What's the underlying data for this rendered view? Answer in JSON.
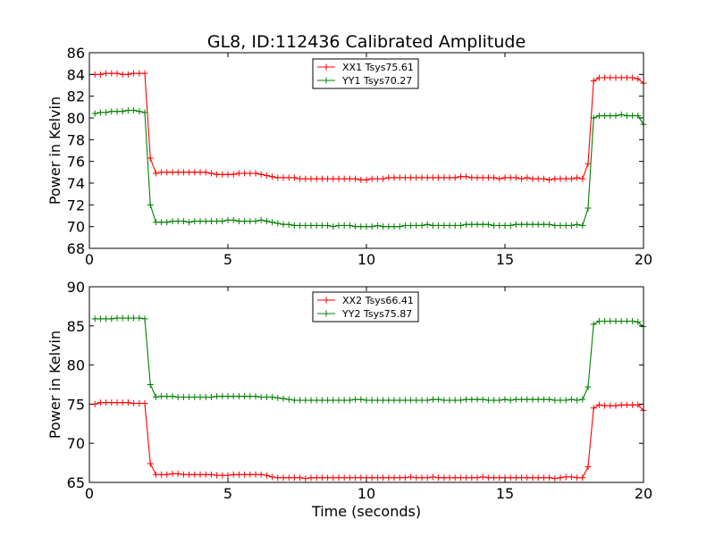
{
  "title": "GL8, ID:112436 Calibrated Amplitude",
  "colors": {
    "red": "#ff0000",
    "green": "#008000"
  },
  "chart_data": [
    {
      "type": "line",
      "title": "GL8, ID:112436 Calibrated Amplitude",
      "xlabel": "",
      "ylabel": "Power in Kelvin",
      "xlim": [
        0,
        20
      ],
      "ylim": [
        68,
        86
      ],
      "xticks": [
        "0",
        "5",
        "10",
        "15",
        "20"
      ],
      "yticks": [
        "68",
        "70",
        "72",
        "74",
        "76",
        "78",
        "80",
        "82",
        "84",
        "86"
      ],
      "grid": false,
      "legend_position": "top-center",
      "marker": "plus",
      "x": [
        0.2,
        0.4,
        0.6,
        0.8,
        1.0,
        1.2,
        1.4,
        1.6,
        1.8,
        2.0,
        2.2,
        2.4,
        2.6,
        2.8,
        3.0,
        3.2,
        3.4,
        3.6,
        3.8,
        4.0,
        4.2,
        4.4,
        4.6,
        4.8,
        5.0,
        5.2,
        5.4,
        5.6,
        5.8,
        6.0,
        6.2,
        6.4,
        6.6,
        6.8,
        7.0,
        7.2,
        7.4,
        7.6,
        7.8,
        8.0,
        8.2,
        8.4,
        8.6,
        8.8,
        9.0,
        9.2,
        9.4,
        9.6,
        9.8,
        10.0,
        10.2,
        10.4,
        10.6,
        10.8,
        11.0,
        11.2,
        11.4,
        11.6,
        11.8,
        12.0,
        12.2,
        12.4,
        12.6,
        12.8,
        13.0,
        13.2,
        13.4,
        13.6,
        13.8,
        14.0,
        14.2,
        14.4,
        14.6,
        14.8,
        15.0,
        15.2,
        15.4,
        15.6,
        15.8,
        16.0,
        16.2,
        16.4,
        16.6,
        16.8,
        17.0,
        17.2,
        17.4,
        17.6,
        17.8,
        18.0,
        18.2,
        18.4,
        18.6,
        18.8,
        19.0,
        19.2,
        19.4,
        19.6,
        19.8,
        20.0
      ],
      "series": [
        {
          "name": "XX1 Tsys75.61",
          "color": "#ff0000",
          "values": [
            84.0,
            84.0,
            84.1,
            84.1,
            84.1,
            84.0,
            84.0,
            84.1,
            84.1,
            84.1,
            76.3,
            74.9,
            75.0,
            75.0,
            75.0,
            75.0,
            75.0,
            75.0,
            75.0,
            75.0,
            75.0,
            74.9,
            74.8,
            74.8,
            74.8,
            74.8,
            74.9,
            74.9,
            74.9,
            74.9,
            74.8,
            74.7,
            74.6,
            74.5,
            74.5,
            74.5,
            74.5,
            74.4,
            74.4,
            74.4,
            74.4,
            74.4,
            74.4,
            74.4,
            74.4,
            74.4,
            74.4,
            74.4,
            74.3,
            74.3,
            74.4,
            74.4,
            74.4,
            74.5,
            74.5,
            74.5,
            74.5,
            74.5,
            74.5,
            74.5,
            74.5,
            74.5,
            74.5,
            74.5,
            74.5,
            74.5,
            74.6,
            74.6,
            74.5,
            74.5,
            74.5,
            74.5,
            74.5,
            74.4,
            74.5,
            74.5,
            74.5,
            74.4,
            74.5,
            74.4,
            74.4,
            74.4,
            74.3,
            74.4,
            74.4,
            74.4,
            74.4,
            74.5,
            74.4,
            75.8,
            83.4,
            83.7,
            83.7,
            83.7,
            83.7,
            83.7,
            83.7,
            83.7,
            83.6,
            83.2
          ]
        },
        {
          "name": "YY1 Tsys70.27",
          "color": "#008000",
          "values": [
            80.4,
            80.5,
            80.5,
            80.6,
            80.6,
            80.6,
            80.7,
            80.7,
            80.6,
            80.5,
            72.0,
            70.4,
            70.4,
            70.4,
            70.5,
            70.5,
            70.5,
            70.4,
            70.5,
            70.5,
            70.5,
            70.5,
            70.5,
            70.5,
            70.6,
            70.6,
            70.5,
            70.5,
            70.5,
            70.5,
            70.6,
            70.5,
            70.4,
            70.3,
            70.2,
            70.2,
            70.1,
            70.1,
            70.1,
            70.1,
            70.1,
            70.1,
            70.1,
            70.0,
            70.1,
            70.1,
            70.1,
            70.0,
            70.0,
            70.0,
            70.0,
            70.1,
            70.0,
            70.0,
            70.0,
            70.0,
            70.1,
            70.1,
            70.1,
            70.1,
            70.2,
            70.1,
            70.1,
            70.1,
            70.1,
            70.1,
            70.1,
            70.2,
            70.2,
            70.2,
            70.2,
            70.2,
            70.1,
            70.1,
            70.1,
            70.1,
            70.2,
            70.2,
            70.2,
            70.2,
            70.2,
            70.2,
            70.2,
            70.1,
            70.1,
            70.1,
            70.1,
            70.2,
            70.1,
            71.7,
            80.0,
            80.2,
            80.2,
            80.2,
            80.2,
            80.3,
            80.2,
            80.2,
            80.2,
            79.4
          ]
        }
      ]
    },
    {
      "type": "line",
      "title": "",
      "xlabel": "Time (seconds)",
      "ylabel": "Power in Kelvin",
      "xlim": [
        0,
        20
      ],
      "ylim": [
        65,
        90
      ],
      "xticks": [
        "0",
        "5",
        "10",
        "15",
        "20"
      ],
      "yticks": [
        "65",
        "70",
        "75",
        "80",
        "85",
        "90"
      ],
      "grid": false,
      "legend_position": "top-center",
      "marker": "plus",
      "x": [
        0.2,
        0.4,
        0.6,
        0.8,
        1.0,
        1.2,
        1.4,
        1.6,
        1.8,
        2.0,
        2.2,
        2.4,
        2.6,
        2.8,
        3.0,
        3.2,
        3.4,
        3.6,
        3.8,
        4.0,
        4.2,
        4.4,
        4.6,
        4.8,
        5.0,
        5.2,
        5.4,
        5.6,
        5.8,
        6.0,
        6.2,
        6.4,
        6.6,
        6.8,
        7.0,
        7.2,
        7.4,
        7.6,
        7.8,
        8.0,
        8.2,
        8.4,
        8.6,
        8.8,
        9.0,
        9.2,
        9.4,
        9.6,
        9.8,
        10.0,
        10.2,
        10.4,
        10.6,
        10.8,
        11.0,
        11.2,
        11.4,
        11.6,
        11.8,
        12.0,
        12.2,
        12.4,
        12.6,
        12.8,
        13.0,
        13.2,
        13.4,
        13.6,
        13.8,
        14.0,
        14.2,
        14.4,
        14.6,
        14.8,
        15.0,
        15.2,
        15.4,
        15.6,
        15.8,
        16.0,
        16.2,
        16.4,
        16.6,
        16.8,
        17.0,
        17.2,
        17.4,
        17.6,
        17.8,
        18.0,
        18.2,
        18.4,
        18.6,
        18.8,
        19.0,
        19.2,
        19.4,
        19.6,
        19.8,
        20.0
      ],
      "series": [
        {
          "name": "XX2 Tsys66.41",
          "color": "#ff0000",
          "values": [
            75.0,
            75.2,
            75.2,
            75.2,
            75.2,
            75.2,
            75.2,
            75.1,
            75.1,
            75.1,
            67.4,
            66.0,
            66.0,
            66.0,
            66.1,
            66.1,
            66.0,
            66.0,
            66.0,
            66.0,
            66.0,
            66.0,
            65.9,
            65.9,
            65.9,
            66.0,
            66.0,
            66.0,
            66.0,
            66.0,
            66.0,
            65.9,
            65.7,
            65.6,
            65.6,
            65.6,
            65.6,
            65.6,
            65.5,
            65.6,
            65.6,
            65.6,
            65.6,
            65.6,
            65.6,
            65.6,
            65.6,
            65.6,
            65.6,
            65.6,
            65.6,
            65.6,
            65.6,
            65.6,
            65.6,
            65.6,
            65.6,
            65.7,
            65.6,
            65.6,
            65.6,
            65.7,
            65.6,
            65.6,
            65.6,
            65.6,
            65.6,
            65.6,
            65.6,
            65.6,
            65.7,
            65.6,
            65.6,
            65.6,
            65.6,
            65.6,
            65.6,
            65.6,
            65.6,
            65.6,
            65.6,
            65.6,
            65.6,
            65.5,
            65.6,
            65.7,
            65.7,
            65.6,
            65.6,
            67.0,
            74.5,
            74.9,
            74.8,
            74.8,
            74.8,
            74.9,
            74.9,
            74.9,
            74.9,
            74.2
          ]
        },
        {
          "name": "YY2 Tsys75.87",
          "color": "#008000",
          "values": [
            85.9,
            85.9,
            85.9,
            85.9,
            86.0,
            86.0,
            86.0,
            86.0,
            86.0,
            85.9,
            77.5,
            75.9,
            76.0,
            76.0,
            76.0,
            75.9,
            75.9,
            75.9,
            75.9,
            75.9,
            75.9,
            75.9,
            76.0,
            76.0,
            76.0,
            76.0,
            76.0,
            76.0,
            76.0,
            76.0,
            75.9,
            75.9,
            75.9,
            75.8,
            75.7,
            75.6,
            75.5,
            75.5,
            75.5,
            75.5,
            75.5,
            75.5,
            75.5,
            75.5,
            75.5,
            75.5,
            75.5,
            75.6,
            75.6,
            75.5,
            75.5,
            75.5,
            75.5,
            75.5,
            75.5,
            75.5,
            75.5,
            75.5,
            75.5,
            75.5,
            75.5,
            75.6,
            75.6,
            75.5,
            75.5,
            75.5,
            75.5,
            75.6,
            75.6,
            75.6,
            75.6,
            75.5,
            75.5,
            75.5,
            75.6,
            75.5,
            75.6,
            75.6,
            75.6,
            75.6,
            75.6,
            75.6,
            75.6,
            75.5,
            75.5,
            75.5,
            75.6,
            75.5,
            75.6,
            77.2,
            85.2,
            85.6,
            85.6,
            85.6,
            85.6,
            85.6,
            85.6,
            85.6,
            85.5,
            84.9
          ]
        }
      ]
    }
  ]
}
